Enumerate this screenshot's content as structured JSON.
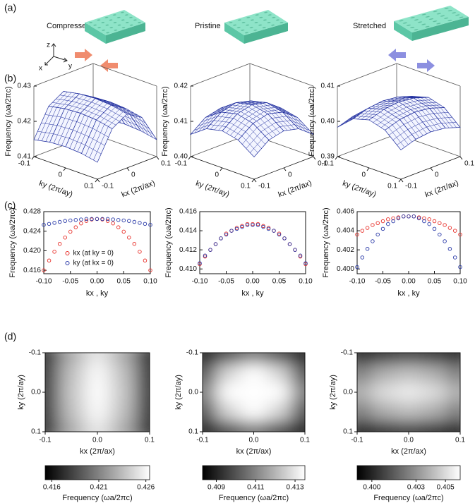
{
  "panel_labels": [
    "(a)",
    "(b)",
    "(c)",
    "(d)"
  ],
  "panel_a": {
    "titles": [
      "Compressed",
      "Pristine",
      "Stretched"
    ],
    "axes": {
      "z": "z",
      "x": "x",
      "y": "y"
    }
  },
  "chart_data": [
    {
      "type": "surface",
      "x": [
        -0.1,
        -0.05,
        0,
        0.05,
        0.1
      ],
      "y": [
        -0.1,
        -0.05,
        0,
        0.05,
        0.1
      ],
      "z": [
        [
          0.4148,
          0.4227,
          0.4253,
          0.4227,
          0.4148
        ],
        [
          0.4157,
          0.4236,
          0.4262,
          0.4236,
          0.4157
        ],
        [
          0.416,
          0.4239,
          0.4265,
          0.4239,
          0.416
        ],
        [
          0.4157,
          0.4236,
          0.4262,
          0.4236,
          0.4157
        ],
        [
          0.4148,
          0.4227,
          0.4253,
          0.4227,
          0.4148
        ]
      ],
      "xlim": [
        -0.1,
        0.1
      ],
      "ylim": [
        -0.1,
        0.1
      ],
      "zlim": [
        0.41,
        0.43
      ],
      "xticks": [
        -0.1,
        0,
        0.1
      ],
      "yticks": [
        -0.1,
        0,
        0.1
      ],
      "zticks": [
        0.41,
        0.42,
        0.43
      ],
      "xlabel": "kx (2π/ax)",
      "ylabel": "ky (2π/ay)",
      "zlabel": "Frequency (ωa/2πc)",
      "color": "#1f2d9e"
    },
    {
      "type": "surface",
      "x": [
        -0.1,
        -0.05,
        0,
        0.05,
        0.1
      ],
      "y": [
        -0.1,
        -0.05,
        0,
        0.05,
        0.1
      ],
      "z": [
        [
          0.4063,
          0.4095,
          0.4105,
          0.4095,
          0.4063
        ],
        [
          0.4095,
          0.4126,
          0.4137,
          0.4126,
          0.4095
        ],
        [
          0.4105,
          0.4137,
          0.4147,
          0.4137,
          0.4105
        ],
        [
          0.4095,
          0.4126,
          0.4137,
          0.4126,
          0.4095
        ],
        [
          0.4063,
          0.4095,
          0.4105,
          0.4095,
          0.4063
        ]
      ],
      "xlim": [
        -0.1,
        0.1
      ],
      "ylim": [
        -0.1,
        0.1
      ],
      "zlim": [
        0.4,
        0.42
      ],
      "xticks": [
        -0.1,
        0,
        0.1
      ],
      "yticks": [
        -0.1,
        0,
        0.1
      ],
      "zticks": [
        {
          "value": 0.4,
          "label": "0.40"
        },
        0.41,
        0.42
      ],
      "xlabel": "kx (2π/ax)",
      "ylabel": "ky (2π/ay)",
      "zlabel": "Frequency (ωa/2πc)",
      "color": "#1f2d9e"
    },
    {
      "type": "surface",
      "x": [
        -0.1,
        -0.05,
        0,
        0.05,
        0.1
      ],
      "y": [
        -0.1,
        -0.05,
        0,
        0.05,
        0.1
      ],
      "z": [
        [
          0.3983,
          0.3997,
          0.4002,
          0.3997,
          0.3983
        ],
        [
          0.4023,
          0.4037,
          0.4042,
          0.4037,
          0.4023
        ],
        [
          0.4036,
          0.405,
          0.4055,
          0.405,
          0.4036
        ],
        [
          0.4023,
          0.4037,
          0.4042,
          0.4037,
          0.4023
        ],
        [
          0.3983,
          0.3997,
          0.4002,
          0.3997,
          0.3983
        ]
      ],
      "xlim": [
        -0.1,
        0.1
      ],
      "ylim": [
        -0.1,
        0.1
      ],
      "zlim": [
        0.39,
        0.41
      ],
      "xticks": [
        -0.1,
        0,
        0.1
      ],
      "yticks": [
        -0.1,
        0,
        0.1
      ],
      "zticks": [
        0.39,
        {
          "value": 0.4,
          "label": "0.40"
        },
        0.41
      ],
      "xlabel": "kx (2π/ax)",
      "ylabel": "ky (2π/ay)",
      "zlabel": "Frequency (ωa/2πc)",
      "color": "#1f2d9e"
    },
    {
      "type": "scatter",
      "x": [
        -0.1,
        -0.09,
        -0.08,
        -0.07,
        -0.06,
        -0.05,
        -0.04,
        -0.03,
        -0.02,
        -0.01,
        0,
        0.01,
        0.02,
        0.03,
        0.04,
        0.05,
        0.06,
        0.07,
        0.08,
        0.09,
        0.1
      ],
      "series": [
        {
          "name": "kx (at ky = 0)",
          "color": "#e8302a",
          "values": [
            0.416,
            0.418,
            0.4198,
            0.4214,
            0.4227,
            0.4239,
            0.4248,
            0.4256,
            0.4261,
            0.4264,
            0.4265,
            0.4264,
            0.4261,
            0.4256,
            0.4248,
            0.4239,
            0.4227,
            0.4214,
            0.4198,
            0.418,
            0.416
          ]
        },
        {
          "name": "ky (at kx = 0)",
          "color": "#2a3aa8",
          "values": [
            0.4253,
            0.4255,
            0.4257,
            0.4259,
            0.4261,
            0.4262,
            0.4263,
            0.4264,
            0.4265,
            0.4265,
            0.4265,
            0.4265,
            0.4265,
            0.4264,
            0.4263,
            0.4262,
            0.4261,
            0.4259,
            0.4257,
            0.4255,
            0.4253
          ]
        }
      ],
      "xlim": [
        -0.1,
        0.1
      ],
      "ylim": [
        0.4153,
        0.428
      ],
      "xticks": [
        {
          "value": -0.1,
          "label": "-0.10"
        },
        -0.05,
        {
          "value": 0,
          "label": "0.00"
        },
        0.05,
        {
          "value": 0.1,
          "label": "0.10"
        }
      ],
      "yticks": [
        0.416,
        {
          "value": 0.42,
          "label": "0.420"
        },
        0.424,
        0.428
      ],
      "xlabel": "kx , ky",
      "ylabel": "Frequency (ωa/2πc)",
      "legend": "lower center"
    },
    {
      "type": "scatter",
      "x": [
        -0.1,
        -0.09,
        -0.08,
        -0.07,
        -0.06,
        -0.05,
        -0.04,
        -0.03,
        -0.02,
        -0.01,
        0,
        0.01,
        0.02,
        0.03,
        0.04,
        0.05,
        0.06,
        0.07,
        0.08,
        0.09,
        0.1
      ],
      "series": [
        {
          "color": "#e8302a",
          "values": [
            0.4105,
            0.4113,
            0.412,
            0.4126,
            0.4132,
            0.4137,
            0.414,
            0.4143,
            0.4145,
            0.4147,
            0.4147,
            0.4147,
            0.4145,
            0.4143,
            0.414,
            0.4137,
            0.4132,
            0.4126,
            0.412,
            0.4113,
            0.4105
          ]
        },
        {
          "color": "#2a3aa8",
          "values": [
            0.4106,
            0.4114,
            0.412,
            0.4126,
            0.4132,
            0.4136,
            0.414,
            0.4142,
            0.4144,
            0.4146,
            0.4146,
            0.4146,
            0.4144,
            0.4142,
            0.414,
            0.4136,
            0.4132,
            0.4126,
            0.412,
            0.4114,
            0.4106
          ]
        }
      ],
      "xlim": [
        -0.1,
        0.1
      ],
      "ylim": [
        0.4095,
        0.416
      ],
      "xticks": [
        {
          "value": -0.1,
          "label": "-0.10"
        },
        -0.05,
        {
          "value": 0,
          "label": "0.00"
        },
        0.05,
        {
          "value": 0.1,
          "label": "0.10"
        }
      ],
      "yticks": [
        {
          "value": 0.41,
          "label": "0.410"
        },
        0.412,
        0.414,
        0.416
      ],
      "xlabel": "kx , ky",
      "ylabel": "Frequency (ωa/2πc)"
    },
    {
      "type": "scatter",
      "x": [
        -0.1,
        -0.09,
        -0.08,
        -0.07,
        -0.06,
        -0.05,
        -0.04,
        -0.03,
        -0.02,
        -0.01,
        0,
        0.01,
        0.02,
        0.03,
        0.04,
        0.05,
        0.06,
        0.07,
        0.08,
        0.09,
        0.1
      ],
      "series": [
        {
          "color": "#e8302a",
          "values": [
            0.4036,
            0.404,
            0.4043,
            0.4046,
            0.4048,
            0.405,
            0.4052,
            0.4053,
            0.4054,
            0.4055,
            0.4055,
            0.4055,
            0.4054,
            0.4053,
            0.4052,
            0.405,
            0.4048,
            0.4046,
            0.4043,
            0.404,
            0.4036
          ]
        },
        {
          "color": "#2a3aa8",
          "values": [
            0.4002,
            0.4012,
            0.4021,
            0.4029,
            0.4036,
            0.4042,
            0.4047,
            0.405,
            0.4053,
            0.4055,
            0.4055,
            0.4055,
            0.4053,
            0.405,
            0.4047,
            0.4042,
            0.4036,
            0.4029,
            0.4021,
            0.4012,
            0.4002
          ]
        }
      ],
      "xlim": [
        -0.1,
        0.1
      ],
      "ylim": [
        0.3995,
        0.406
      ],
      "xticks": [
        {
          "value": -0.1,
          "label": "-0.10"
        },
        -0.05,
        {
          "value": 0,
          "label": "0.00"
        },
        0.05,
        {
          "value": 0.1,
          "label": "0.10"
        }
      ],
      "yticks": [
        {
          "value": 0.4,
          "label": "0.400"
        },
        0.402,
        0.404,
        0.406
      ],
      "xlabel": "kx , ky",
      "ylabel": "Frequency (ωa/2πc)"
    },
    {
      "type": "heatmap",
      "x": [
        -0.1,
        -0.05,
        0,
        0.05,
        0.1
      ],
      "y": [
        -0.1,
        -0.05,
        0,
        0.05,
        0.1
      ],
      "z": [
        [
          0.4148,
          0.4227,
          0.4253,
          0.4227,
          0.4148
        ],
        [
          0.4157,
          0.4236,
          0.4262,
          0.4236,
          0.4157
        ],
        [
          0.416,
          0.4239,
          0.4265,
          0.4239,
          0.416
        ],
        [
          0.4157,
          0.4236,
          0.4262,
          0.4236,
          0.4157
        ],
        [
          0.4148,
          0.4227,
          0.4253,
          0.4227,
          0.4148
        ]
      ],
      "xlim": [
        -0.1,
        0.1
      ],
      "ylim": [
        -0.1,
        0.1
      ],
      "y_inverted": true,
      "colormap": "gray",
      "xticks": [
        -0.1,
        {
          "value": 0,
          "label": "0.0"
        },
        0.1
      ],
      "yticks": [
        -0.1,
        {
          "value": 0,
          "label": "0.0"
        },
        0.1
      ],
      "xlabel": "kx (2π/ax)",
      "ylabel": "ky (2π/ay)",
      "colorbar": {
        "zlim": [
          0.4153,
          0.4264
        ],
        "ticks": [
          0.416,
          0.421,
          0.426
        ],
        "label": "Frequency (ωa/2πc)"
      }
    },
    {
      "type": "heatmap",
      "x": [
        -0.1,
        -0.05,
        0,
        0.05,
        0.1
      ],
      "y": [
        -0.1,
        -0.05,
        0,
        0.05,
        0.1
      ],
      "z": [
        [
          0.4063,
          0.4095,
          0.4105,
          0.4095,
          0.4063
        ],
        [
          0.4095,
          0.4126,
          0.4137,
          0.4126,
          0.4095
        ],
        [
          0.4105,
          0.4137,
          0.4147,
          0.4137,
          0.4105
        ],
        [
          0.4095,
          0.4126,
          0.4137,
          0.4126,
          0.4095
        ],
        [
          0.4063,
          0.4095,
          0.4105,
          0.4095,
          0.4063
        ]
      ],
      "xlim": [
        -0.1,
        0.1
      ],
      "ylim": [
        -0.1,
        0.1
      ],
      "y_inverted": true,
      "colormap": "gray",
      "xticks": [
        -0.1,
        {
          "value": 0,
          "label": "0.0"
        },
        0.1
      ],
      "yticks": [
        -0.1,
        {
          "value": 0,
          "label": "0.0"
        },
        0.1
      ],
      "xlabel": "kx (2π/ax)",
      "ylabel": "ky (2π/ay)",
      "colorbar": {
        "zlim": [
          0.4083,
          0.4135
        ],
        "ticks": [
          0.409,
          0.411,
          0.413
        ],
        "label": "Frequency (ωa/2πc)"
      }
    },
    {
      "type": "heatmap",
      "x": [
        -0.1,
        -0.05,
        0,
        0.05,
        0.1
      ],
      "y": [
        -0.1,
        -0.05,
        0,
        0.05,
        0.1
      ],
      "z": [
        [
          0.3983,
          0.3997,
          0.4002,
          0.3997,
          0.3983
        ],
        [
          0.4023,
          0.4037,
          0.4042,
          0.4037,
          0.4023
        ],
        [
          0.4036,
          0.405,
          0.4055,
          0.405,
          0.4036
        ],
        [
          0.4023,
          0.4037,
          0.4042,
          0.4037,
          0.4023
        ],
        [
          0.3983,
          0.3997,
          0.4002,
          0.3997,
          0.3983
        ]
      ],
      "xlim": [
        -0.1,
        0.1
      ],
      "ylim": [
        -0.1,
        0.1
      ],
      "y_inverted": true,
      "colormap": "gray",
      "xticks": [
        -0.1,
        {
          "value": 0,
          "label": "0.0"
        },
        0.1
      ],
      "yticks": [
        -0.1,
        {
          "value": 0,
          "label": "0.0"
        },
        0.1
      ],
      "xlabel": "kx (2π/ax)",
      "ylabel": "ky (2π/ay)",
      "colorbar": {
        "zlim": [
          0.399,
          0.406
        ],
        "ticks": [
          {
            "value": 0.4,
            "label": "0.400"
          },
          0.403,
          0.405
        ],
        "label": "Frequency (ωa/2πc)"
      }
    }
  ]
}
